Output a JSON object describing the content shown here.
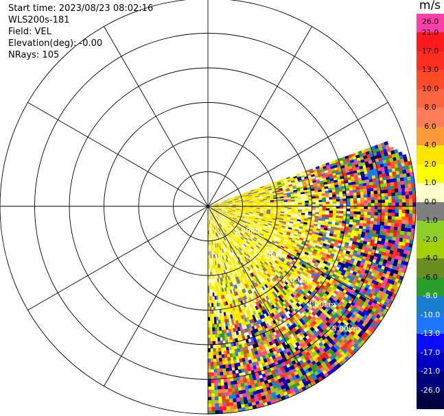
{
  "info": {
    "start_time": "Start time: 2023/08/23 08:02:16",
    "instrument": "WLS200s-181",
    "field": "Field: VEL",
    "elevation": "Elevation(deg): -0.00",
    "nrays": "NRays: 105"
  },
  "colorbar": {
    "unit": "m/s",
    "labels": [
      "26.0",
      "21.0",
      "17.0",
      "13.0",
      "10.0",
      "8.0",
      "6.0",
      "4.0",
      "2.0",
      "1.0",
      "0.0",
      "-1.0",
      "-2.0",
      "-4.0",
      "-6.0",
      "-8.0",
      "-10.0",
      "-13.0",
      "-17.0",
      "-21.0",
      "-26.0",
      "-30.0"
    ],
    "colors": [
      "#ff3fa8",
      "#ff1a1a",
      "#ff2e1e",
      "#ff4a26",
      "#ff6440",
      "#ff7c58",
      "#ff9a38",
      "#ffe400",
      "#ffff00",
      "#ffffcc",
      "#7f7f7f",
      "#8fd028",
      "#a5d000",
      "#6a8e20",
      "#2a9e2a",
      "#1a7ecf",
      "#1e78ff",
      "#0a0aff",
      "#0000c0",
      "#00007f",
      "#00004a"
    ]
  },
  "chart_data": {
    "type": "heatmap",
    "projection": "polar PPI scan (plan position indicator)",
    "field": "VEL",
    "units": "m/s",
    "elevation_deg": -0.0,
    "nrays": 105,
    "azimuth_coverage_deg": [
      70,
      180
    ],
    "range_rings_km": [
      1,
      2,
      3,
      4,
      5,
      6
    ],
    "range_ring_labels": [
      "1.00km",
      "2.00km",
      "3.00km",
      "4.00km",
      "5.00km"
    ],
    "radial_spokes_deg": [
      0,
      30,
      60,
      90,
      120,
      150,
      180,
      210,
      240,
      270,
      300,
      330
    ],
    "color_scale_min": -30.0,
    "color_scale_max": 26.0,
    "near_range_values": "mostly 2.0 to 4.0 (yellow) with 0.0 (gray) streaks",
    "far_range_values": "noisy mix spanning -30.0 to 26.0"
  }
}
